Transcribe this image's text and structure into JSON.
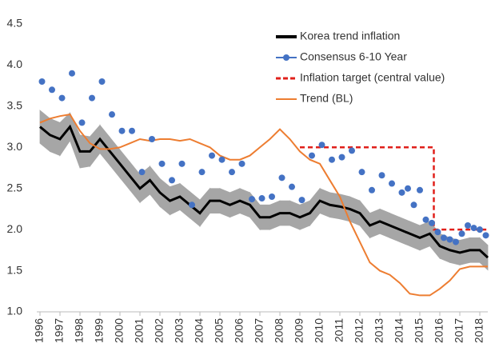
{
  "chart_data": {
    "type": "line",
    "xlim": [
      1996,
      2018.4
    ],
    "ylim": [
      1.0,
      4.5
    ],
    "xticks": [
      1996,
      1997,
      1998,
      1999,
      2000,
      2001,
      2002,
      2003,
      2004,
      2005,
      2006,
      2007,
      2008,
      2009,
      2010,
      2011,
      2012,
      2013,
      2014,
      2015,
      2016,
      2017,
      2018
    ],
    "yticks": [
      {
        "value": 1.0,
        "label": "1.0"
      },
      1.5,
      {
        "value": 2.0,
        "label": "2.0"
      },
      2.5,
      {
        "value": 3.0,
        "label": "3.0"
      },
      3.5,
      {
        "value": 4.0,
        "label": "4.0"
      },
      4.5
    ],
    "legend": "upper right",
    "band": {
      "color": "#a6a6a6",
      "x": [
        1996,
        1996.5,
        1997,
        1997.5,
        1998,
        1998.5,
        1999,
        1999.5,
        2000,
        2000.5,
        2001,
        2001.5,
        2002,
        2002.5,
        2003,
        2003.5,
        2004,
        2004.5,
        2005,
        2005.5,
        2006,
        2006.5,
        2007,
        2007.5,
        2008,
        2008.5,
        2009,
        2009.5,
        2010,
        2010.5,
        2011,
        2011.5,
        2012,
        2012.5,
        2013,
        2013.5,
        2014,
        2014.5,
        2015,
        2015.5,
        2016,
        2016.5,
        2017,
        2017.5,
        2018,
        2018.4
      ],
      "upper": [
        3.45,
        3.35,
        3.3,
        3.42,
        3.15,
        3.13,
        3.27,
        3.12,
        2.97,
        2.82,
        2.67,
        2.77,
        2.62,
        2.52,
        2.56,
        2.46,
        2.36,
        2.5,
        2.5,
        2.45,
        2.5,
        2.45,
        2.3,
        2.3,
        2.35,
        2.35,
        2.3,
        2.35,
        2.5,
        2.45,
        2.43,
        2.4,
        2.35,
        2.2,
        2.25,
        2.2,
        2.15,
        2.1,
        2.05,
        2.1,
        1.95,
        1.9,
        1.87,
        1.9,
        1.9,
        1.81
      ],
      "lower": [
        3.05,
        2.95,
        2.9,
        3.08,
        2.75,
        2.77,
        2.93,
        2.78,
        2.63,
        2.48,
        2.33,
        2.43,
        2.28,
        2.18,
        2.24,
        2.14,
        2.04,
        2.2,
        2.2,
        2.15,
        2.2,
        2.15,
        2.0,
        2.0,
        2.05,
        2.05,
        2.0,
        2.05,
        2.2,
        2.15,
        2.13,
        2.1,
        2.05,
        1.9,
        1.95,
        1.9,
        1.85,
        1.8,
        1.75,
        1.8,
        1.65,
        1.6,
        1.57,
        1.6,
        1.6,
        1.51
      ]
    },
    "series": [
      {
        "name": "Korea trend inflation",
        "color": "#000000",
        "style": "line",
        "x": [
          1996,
          1996.5,
          1997,
          1997.5,
          1998,
          1998.5,
          1999,
          1999.5,
          2000,
          2000.5,
          2001,
          2001.5,
          2002,
          2002.5,
          2003,
          2003.5,
          2004,
          2004.5,
          2005,
          2005.5,
          2006,
          2006.5,
          2007,
          2007.5,
          2008,
          2008.5,
          2009,
          2009.5,
          2010,
          2010.5,
          2011,
          2011.5,
          2012,
          2012.5,
          2013,
          2013.5,
          2014,
          2014.5,
          2015,
          2015.5,
          2016,
          2016.5,
          2017,
          2017.5,
          2018,
          2018.4
        ],
        "values": [
          3.25,
          3.15,
          3.1,
          3.25,
          2.95,
          2.95,
          3.1,
          2.95,
          2.8,
          2.65,
          2.5,
          2.6,
          2.45,
          2.35,
          2.4,
          2.3,
          2.2,
          2.35,
          2.35,
          2.3,
          2.35,
          2.3,
          2.15,
          2.15,
          2.2,
          2.2,
          2.15,
          2.2,
          2.35,
          2.3,
          2.28,
          2.25,
          2.2,
          2.05,
          2.1,
          2.05,
          2.0,
          1.95,
          1.9,
          1.95,
          1.8,
          1.75,
          1.72,
          1.75,
          1.75,
          1.66
        ]
      },
      {
        "name": "Consensus 6-10 Year",
        "color": "#4472c4",
        "style": "dots",
        "x": [
          1996.1,
          1996.6,
          1997.1,
          1997.6,
          1998.1,
          1998.6,
          1999.1,
          1999.6,
          2000.1,
          2000.6,
          2001.1,
          2001.6,
          2002.1,
          2002.6,
          2003.1,
          2003.6,
          2004.1,
          2004.6,
          2005.1,
          2005.6,
          2006.1,
          2006.6,
          2007.1,
          2007.6,
          2008.1,
          2008.6,
          2009.1,
          2009.6,
          2010.1,
          2010.6,
          2011.1,
          2011.6,
          2012.1,
          2012.6,
          2013.1,
          2013.6,
          2014.1,
          2014.4,
          2014.7,
          2015.0,
          2015.3,
          2015.6,
          2015.9,
          2016.2,
          2016.5,
          2016.8,
          2017.1,
          2017.4,
          2017.7,
          2018.0,
          2018.3
        ],
        "values": [
          3.8,
          3.7,
          3.6,
          3.9,
          3.3,
          3.6,
          3.8,
          3.4,
          3.2,
          3.2,
          2.7,
          3.1,
          2.8,
          2.6,
          2.8,
          2.3,
          2.7,
          2.9,
          2.85,
          2.7,
          2.8,
          2.37,
          2.38,
          2.4,
          2.63,
          2.52,
          2.36,
          2.9,
          3.03,
          2.85,
          2.88,
          2.96,
          2.7,
          2.48,
          2.66,
          2.56,
          2.45,
          2.5,
          2.3,
          2.48,
          2.12,
          2.08,
          1.97,
          1.9,
          1.88,
          1.85,
          1.95,
          2.05,
          2.02,
          2.0,
          1.93
        ]
      },
      {
        "name": "Inflation target (central value)",
        "color": "#e0201b",
        "style": "dashed",
        "x": [
          2009,
          2015.7,
          2015.7,
          2018.4
        ],
        "values": [
          3.0,
          3.0,
          2.0,
          2.0
        ]
      },
      {
        "name": "Trend (BL)",
        "color": "#ed7d31",
        "style": "line",
        "x": [
          1996,
          1996.5,
          1997,
          1997.5,
          1998,
          1998.5,
          1999,
          1999.5,
          2000,
          2000.5,
          2001,
          2001.5,
          2002,
          2002.5,
          2003,
          2003.5,
          2004,
          2004.5,
          2005,
          2005.5,
          2006,
          2006.5,
          2007,
          2007.5,
          2008,
          2008.5,
          2009,
          2009.5,
          2010,
          2010.5,
          2011,
          2011.5,
          2012,
          2012.5,
          2013,
          2013.5,
          2014,
          2014.5,
          2015,
          2015.5,
          2016,
          2016.5,
          2017,
          2017.5,
          2018,
          2018.4
        ],
        "values": [
          3.3,
          3.35,
          3.38,
          3.4,
          3.2,
          3.05,
          2.98,
          2.98,
          3.0,
          3.05,
          3.1,
          3.08,
          3.1,
          3.1,
          3.08,
          3.1,
          3.05,
          3.0,
          2.9,
          2.85,
          2.85,
          2.9,
          3.0,
          3.1,
          3.22,
          3.1,
          2.95,
          2.85,
          2.8,
          2.6,
          2.4,
          2.1,
          1.85,
          1.6,
          1.5,
          1.45,
          1.35,
          1.22,
          1.2,
          1.2,
          1.28,
          1.38,
          1.52,
          1.55,
          1.55,
          1.55
        ]
      }
    ]
  }
}
